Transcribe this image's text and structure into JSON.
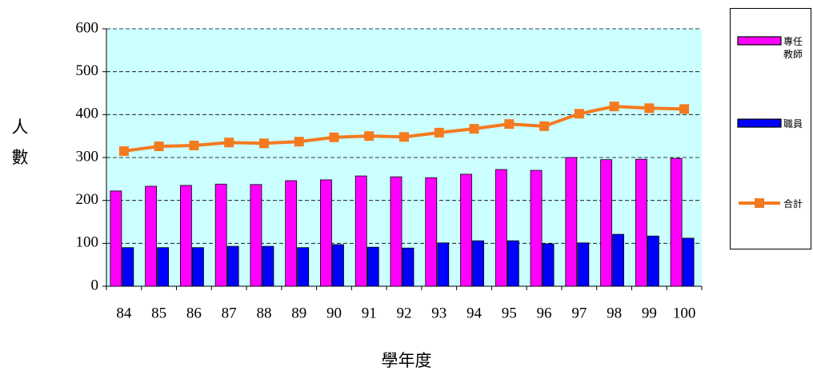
{
  "chart_data": {
    "type": "bar-line",
    "y_label": "人數",
    "x_label": "學年度",
    "categories": [
      "84",
      "85",
      "86",
      "87",
      "88",
      "89",
      "90",
      "91",
      "92",
      "93",
      "94",
      "95",
      "96",
      "97",
      "98",
      "99",
      "100"
    ],
    "series": [
      {
        "name": "專任教師",
        "type": "bar",
        "color": "#ff00ff",
        "values": [
          222,
          233,
          235,
          238,
          237,
          246,
          248,
          257,
          255,
          253,
          261,
          272,
          270,
          300,
          295,
          296,
          298
        ]
      },
      {
        "name": "職員",
        "type": "bar",
        "color": "#0000ff",
        "values": [
          90,
          90,
          90,
          93,
          93,
          90,
          97,
          91,
          89,
          101,
          106,
          106,
          99,
          101,
          121,
          117,
          112
        ]
      },
      {
        "name": "合計",
        "type": "line",
        "color": "#f47a20",
        "values": [
          315,
          326,
          328,
          335,
          333,
          337,
          347,
          350,
          348,
          358,
          367,
          378,
          373,
          402,
          419,
          415,
          413
        ]
      }
    ],
    "ylim": [
      0,
      600
    ],
    "yticks": [
      0,
      100,
      200,
      300,
      400,
      500,
      600
    ],
    "grid": true,
    "legend": "right",
    "plot_background": "#ccffff"
  }
}
